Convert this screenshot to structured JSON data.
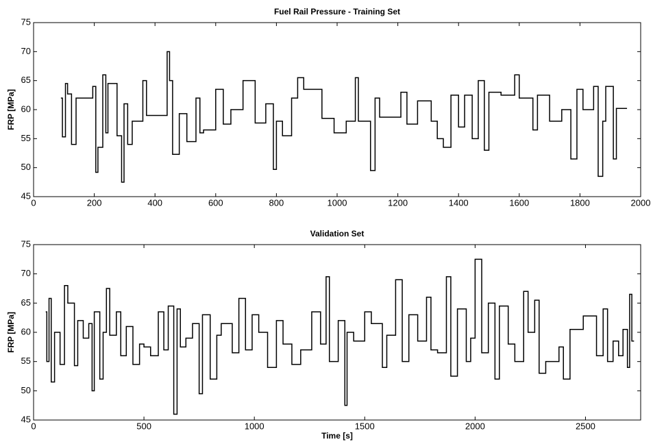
{
  "chart_data": [
    {
      "type": "line",
      "title": "Fuel Rail Pressure - Training Set",
      "ylabel": "FRP [MPa]",
      "color": "#000000",
      "xlim": [
        0,
        2000
      ],
      "xticks": [
        0,
        200,
        400,
        600,
        800,
        1000,
        1200,
        1400,
        1600,
        1800,
        2000
      ],
      "ylim": [
        45,
        75
      ],
      "yticks": [
        45,
        50,
        55,
        60,
        65,
        70,
        75
      ],
      "x": [
        90,
        95,
        95,
        105,
        105,
        112,
        112,
        125,
        125,
        140,
        140,
        195,
        195,
        205,
        205,
        212,
        212,
        228,
        228,
        238,
        238,
        245,
        245,
        275,
        275,
        290,
        290,
        298,
        298,
        310,
        310,
        325,
        325,
        360,
        360,
        372,
        372,
        440,
        440,
        448,
        448,
        458,
        458,
        480,
        480,
        505,
        505,
        535,
        535,
        548,
        548,
        560,
        560,
        600,
        600,
        625,
        625,
        650,
        650,
        690,
        690,
        730,
        730,
        765,
        765,
        790,
        790,
        800,
        800,
        820,
        820,
        850,
        850,
        870,
        870,
        890,
        890,
        950,
        950,
        990,
        990,
        1030,
        1030,
        1060,
        1060,
        1070,
        1070,
        1110,
        1110,
        1125,
        1125,
        1140,
        1140,
        1210,
        1210,
        1230,
        1230,
        1265,
        1265,
        1310,
        1310,
        1330,
        1330,
        1350,
        1350,
        1375,
        1375,
        1400,
        1400,
        1420,
        1420,
        1445,
        1445,
        1465,
        1465,
        1485,
        1485,
        1500,
        1500,
        1540,
        1540,
        1585,
        1585,
        1600,
        1600,
        1645,
        1645,
        1660,
        1660,
        1700,
        1700,
        1740,
        1740,
        1770,
        1770,
        1790,
        1790,
        1810,
        1810,
        1845,
        1845,
        1860,
        1860,
        1875,
        1875,
        1885,
        1885,
        1910,
        1910,
        1920,
        1920,
        1955
      ],
      "y": [
        62,
        62,
        55.3,
        55.3,
        64.5,
        64.5,
        62.7,
        62.7,
        54,
        54,
        62,
        62,
        64,
        64,
        49.2,
        49.2,
        53.5,
        53.5,
        66,
        66,
        56,
        56,
        64.5,
        64.5,
        55.5,
        55.5,
        47.5,
        47.5,
        61,
        61,
        54,
        54,
        58,
        58,
        65,
        65,
        59,
        59,
        70,
        70,
        65,
        65,
        52.3,
        52.3,
        59.3,
        59.3,
        54.5,
        54.5,
        62,
        62,
        56,
        56,
        56.5,
        56.5,
        63.5,
        63.5,
        57.5,
        57.5,
        60,
        60,
        65,
        65,
        57.7,
        57.7,
        61,
        61,
        49.7,
        49.7,
        58,
        58,
        55.5,
        55.5,
        62,
        62,
        65.5,
        65.5,
        63.5,
        63.5,
        58.5,
        58.5,
        56,
        56,
        58,
        58,
        65.5,
        65.5,
        58,
        58,
        49.5,
        49.5,
        62,
        62,
        58.7,
        58.7,
        63,
        63,
        57.5,
        57.5,
        61.5,
        61.5,
        58,
        58,
        55,
        55,
        53.5,
        53.5,
        62.5,
        62.5,
        57,
        57,
        62.5,
        62.5,
        55,
        55,
        65,
        65,
        53,
        53,
        63,
        63,
        62.5,
        62.5,
        66,
        66,
        62,
        62,
        56.5,
        56.5,
        62.5,
        62.5,
        58,
        58,
        60,
        60,
        51.5,
        51.5,
        63.5,
        63.5,
        60,
        60,
        64,
        64,
        48.5,
        48.5,
        58,
        58,
        64,
        64,
        51.5,
        51.5,
        60.2,
        60.2
      ]
    },
    {
      "type": "line",
      "title": "Validation Set",
      "xlabel": "Time [s]",
      "ylabel": "FRP [MPa]",
      "color": "#000000",
      "xlim": [
        0,
        2750
      ],
      "xticks": [
        0,
        500,
        1000,
        1500,
        2000,
        2500
      ],
      "ylim": [
        45,
        75
      ],
      "yticks": [
        45,
        50,
        55,
        60,
        65,
        70,
        75
      ],
      "x": [
        55,
        60,
        60,
        70,
        70,
        80,
        80,
        95,
        95,
        120,
        120,
        140,
        140,
        155,
        155,
        185,
        185,
        200,
        200,
        225,
        225,
        250,
        250,
        265,
        265,
        275,
        275,
        300,
        300,
        315,
        315,
        330,
        330,
        345,
        345,
        375,
        375,
        395,
        395,
        420,
        420,
        450,
        450,
        480,
        480,
        500,
        500,
        530,
        530,
        565,
        565,
        590,
        590,
        610,
        610,
        635,
        635,
        650,
        650,
        665,
        665,
        690,
        690,
        720,
        720,
        750,
        750,
        765,
        765,
        800,
        800,
        830,
        830,
        850,
        850,
        900,
        900,
        930,
        930,
        960,
        960,
        990,
        990,
        1020,
        1020,
        1060,
        1060,
        1100,
        1100,
        1130,
        1130,
        1170,
        1170,
        1210,
        1210,
        1260,
        1260,
        1300,
        1300,
        1325,
        1325,
        1340,
        1340,
        1380,
        1380,
        1410,
        1410,
        1420,
        1420,
        1450,
        1450,
        1500,
        1500,
        1530,
        1530,
        1580,
        1580,
        1600,
        1600,
        1640,
        1640,
        1670,
        1670,
        1700,
        1700,
        1740,
        1740,
        1780,
        1780,
        1800,
        1800,
        1830,
        1830,
        1870,
        1870,
        1890,
        1890,
        1920,
        1920,
        1960,
        1960,
        1980,
        1980,
        2000,
        2000,
        2030,
        2030,
        2060,
        2060,
        2090,
        2090,
        2110,
        2110,
        2150,
        2150,
        2180,
        2180,
        2220,
        2220,
        2240,
        2240,
        2270,
        2270,
        2290,
        2290,
        2320,
        2320,
        2380,
        2380,
        2400,
        2400,
        2430,
        2430,
        2490,
        2490,
        2550,
        2550,
        2580,
        2580,
        2600,
        2600,
        2625,
        2625,
        2650,
        2650,
        2670,
        2670,
        2690,
        2690,
        2700,
        2700,
        2710,
        2710,
        2720
      ],
      "y": [
        63.5,
        63.5,
        55,
        55,
        65.8,
        65.8,
        51.5,
        51.5,
        60,
        60,
        54.5,
        54.5,
        68,
        68,
        65,
        65,
        54.3,
        54.3,
        62,
        62,
        59,
        59,
        61.5,
        61.5,
        50,
        50,
        63.5,
        63.5,
        52,
        52,
        60,
        60,
        67.5,
        67.5,
        59.5,
        59.5,
        63.5,
        63.5,
        56,
        56,
        61,
        61,
        54.5,
        54.5,
        58,
        58,
        57.5,
        57.5,
        56,
        56,
        63.5,
        63.5,
        57,
        57,
        64.5,
        64.5,
        46,
        46,
        64,
        64,
        57.5,
        57.5,
        59,
        59,
        61.5,
        61.5,
        49.5,
        49.5,
        63,
        63,
        52,
        52,
        59.5,
        59.5,
        61.5,
        61.5,
        56.5,
        56.5,
        65.8,
        65.8,
        57,
        57,
        63,
        63,
        60,
        60,
        54,
        54,
        62,
        62,
        58,
        58,
        54.5,
        54.5,
        57,
        57,
        63.5,
        63.5,
        58,
        58,
        69.5,
        69.5,
        55,
        55,
        62,
        62,
        47.5,
        47.5,
        60,
        60,
        58.5,
        58.5,
        63.5,
        63.5,
        61.5,
        61.5,
        54,
        54,
        59.5,
        59.5,
        69,
        69,
        55,
        55,
        63,
        63,
        58.5,
        58.5,
        66,
        66,
        57,
        57,
        56.5,
        56.5,
        69.5,
        69.5,
        52.5,
        52.5,
        64,
        64,
        55,
        55,
        59,
        59,
        72.5,
        72.5,
        56.5,
        56.5,
        65,
        65,
        52,
        52,
        64.5,
        64.5,
        58,
        58,
        55,
        55,
        67,
        67,
        60,
        60,
        65.5,
        65.5,
        53,
        53,
        55,
        55,
        57.5,
        57.5,
        52,
        52,
        60.5,
        60.5,
        62.8,
        62.8,
        56,
        56,
        64,
        64,
        55,
        55,
        58.5,
        58.5,
        56,
        56,
        60.5,
        60.5,
        54,
        54,
        66.5,
        66.5,
        58.5,
        58.5
      ]
    }
  ]
}
